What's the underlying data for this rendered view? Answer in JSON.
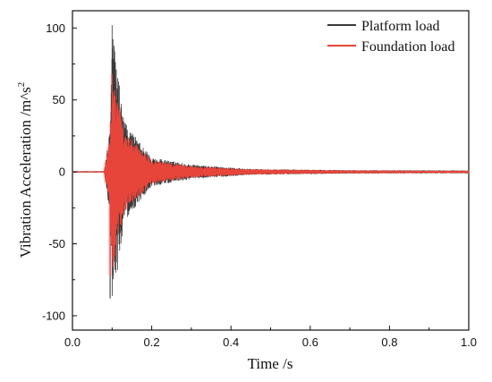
{
  "chart_data": {
    "type": "line",
    "xlabel": "Time /s",
    "ylabel": "Vibration Acceleration /m^s",
    "ylabel_superscript": "2",
    "xlim": [
      0.0,
      1.0
    ],
    "ylim": [
      -110,
      112
    ],
    "x_ticks": [
      "0.0",
      "0.2",
      "0.4",
      "0.6",
      "0.8",
      "1.0"
    ],
    "y_ticks": [
      "100",
      "50",
      "0",
      "-50",
      "-100"
    ],
    "grid": false,
    "legend_position": "top-right",
    "series": [
      {
        "name": "Platform load",
        "color": "#3a3a3a",
        "peak_positive": 102,
        "peak_negative": -88,
        "onset_time": 0.095,
        "envelope": [
          {
            "t": 0.0,
            "amp": 0.5
          },
          {
            "t": 0.08,
            "amp": 0.5
          },
          {
            "t": 0.095,
            "amp": 30
          },
          {
            "t": 0.1,
            "amp": 100
          },
          {
            "t": 0.13,
            "amp": 35
          },
          {
            "t": 0.2,
            "amp": 10
          },
          {
            "t": 0.3,
            "amp": 5
          },
          {
            "t": 0.45,
            "amp": 2
          },
          {
            "t": 0.7,
            "amp": 1.2
          },
          {
            "t": 1.0,
            "amp": 1
          }
        ]
      },
      {
        "name": "Foundation load",
        "color": "#e8453a",
        "peak_positive": 68,
        "peak_negative": -72,
        "onset_time": 0.095,
        "envelope": [
          {
            "t": 0.0,
            "amp": 0.4
          },
          {
            "t": 0.08,
            "amp": 0.4
          },
          {
            "t": 0.095,
            "amp": 25
          },
          {
            "t": 0.1,
            "amp": 70
          },
          {
            "t": 0.13,
            "amp": 28
          },
          {
            "t": 0.2,
            "amp": 8
          },
          {
            "t": 0.3,
            "amp": 4
          },
          {
            "t": 0.45,
            "amp": 1.8
          },
          {
            "t": 0.7,
            "amp": 1
          },
          {
            "t": 1.0,
            "amp": 0.8
          }
        ]
      }
    ]
  }
}
